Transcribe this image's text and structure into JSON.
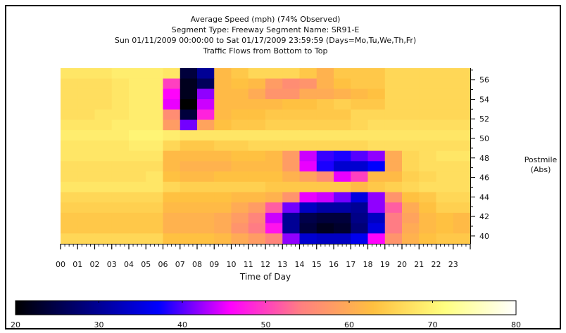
{
  "chart_data": {
    "type": "heatmap",
    "title_lines": [
      "Average Speed (mph) (74% Observed)",
      "Segment Type: Freeway Segment Name: SR91-E",
      "Sun 01/11/2009 00:00:00 to Sat 01/17/2009 23:59:59 (Days=Mo,Tu,We,Th,Fr)",
      "Traffic Flows from Bottom to Top"
    ],
    "xlabel": "Time of Day",
    "ylabel_lines": [
      "Postmile",
      "(Abs)"
    ],
    "x_ticks": [
      "00",
      "01",
      "02",
      "03",
      "04",
      "05",
      "06",
      "07",
      "08",
      "09",
      "10",
      "11",
      "12",
      "13",
      "14",
      "15",
      "16",
      "17",
      "18",
      "19",
      "20",
      "21",
      "22",
      "23"
    ],
    "y_ticks": [
      "40",
      "42",
      "44",
      "46",
      "48",
      "50",
      "52",
      "54",
      "56"
    ],
    "ylim": [
      39.2,
      57.2
    ],
    "colorbar": {
      "min": 20,
      "max": 80,
      "ticks": [
        "20",
        "30",
        "40",
        "50",
        "60",
        "70",
        "80"
      ],
      "stops": [
        "#000000",
        "#000080",
        "#0000ff",
        "#ff00ff",
        "#ff8080",
        "#ffc040",
        "#ffff80",
        "#ffffff"
      ]
    },
    "rows_top_to_bottom": [
      [
        68,
        68,
        68,
        69,
        69,
        69,
        68,
        24,
        30,
        62,
        64,
        66,
        66,
        66,
        64,
        61,
        64,
        64,
        64,
        66,
        66,
        66,
        66,
        66
      ],
      [
        67,
        67,
        67,
        68,
        69,
        69,
        50,
        22,
        26,
        62,
        63,
        62,
        58,
        56,
        57,
        61,
        63,
        64,
        64,
        66,
        66,
        66,
        66,
        66
      ],
      [
        67,
        67,
        67,
        68,
        69,
        69,
        46,
        22,
        42,
        62,
        62,
        60,
        57,
        57,
        60,
        60,
        61,
        62,
        63,
        66,
        66,
        66,
        66,
        66
      ],
      [
        67,
        67,
        67,
        68,
        69,
        69,
        45,
        20,
        44,
        62,
        62,
        62,
        62,
        63,
        63,
        64,
        65,
        64,
        64,
        66,
        66,
        66,
        66,
        66
      ],
      [
        67,
        67,
        68,
        68,
        69,
        69,
        56,
        24,
        48,
        62,
        63,
        63,
        64,
        64,
        64,
        64,
        64,
        66,
        66,
        66,
        66,
        66,
        66,
        66
      ],
      [
        68,
        68,
        68,
        69,
        69,
        69,
        58,
        41,
        59,
        63,
        64,
        64,
        65,
        65,
        65,
        65,
        65,
        66,
        67,
        67,
        67,
        67,
        67,
        67
      ],
      [
        69,
        69,
        69,
        69,
        70,
        70,
        69,
        68,
        68,
        68,
        68,
        68,
        68,
        68,
        68,
        68,
        68,
        68,
        68,
        68,
        68,
        68,
        68,
        68
      ],
      [
        68,
        68,
        68,
        68,
        69,
        69,
        66,
        64,
        64,
        65,
        65,
        66,
        66,
        66,
        66,
        66,
        66,
        66,
        67,
        67,
        67,
        67,
        67,
        67
      ],
      [
        68,
        68,
        68,
        68,
        68,
        68,
        62,
        62,
        62,
        62,
        63,
        63,
        62,
        58,
        44,
        39,
        38,
        40,
        42,
        60,
        66,
        67,
        68,
        68
      ],
      [
        67,
        67,
        67,
        67,
        67,
        67,
        62,
        61,
        61,
        61,
        62,
        62,
        62,
        58,
        45,
        38,
        34,
        34,
        37,
        60,
        66,
        67,
        67,
        67
      ],
      [
        67,
        67,
        67,
        67,
        67,
        68,
        63,
        62,
        62,
        63,
        63,
        63,
        63,
        61,
        59,
        56,
        45,
        50,
        62,
        62,
        65,
        66,
        67,
        67
      ],
      [
        68,
        68,
        68,
        68,
        68,
        68,
        66,
        65,
        65,
        65,
        65,
        65,
        64,
        64,
        64,
        64,
        64,
        62,
        64,
        65,
        66,
        67,
        67,
        67
      ],
      [
        66,
        66,
        66,
        66,
        66,
        66,
        63,
        63,
        63,
        63,
        62,
        62,
        61,
        57,
        45,
        44,
        41,
        35,
        42,
        57,
        63,
        64,
        66,
        66
      ],
      [
        65,
        65,
        65,
        65,
        65,
        65,
        62,
        62,
        62,
        62,
        60,
        58,
        52,
        41,
        33,
        31,
        31,
        30,
        42,
        52,
        60,
        63,
        65,
        65
      ],
      [
        64,
        64,
        64,
        64,
        64,
        64,
        61,
        61,
        61,
        60,
        58,
        55,
        44,
        30,
        25,
        24,
        24,
        29,
        33,
        54,
        59,
        62,
        63,
        62
      ],
      [
        64,
        64,
        64,
        64,
        64,
        64,
        61,
        61,
        61,
        60,
        57,
        54,
        47,
        30,
        24,
        22,
        23,
        28,
        35,
        54,
        60,
        62,
        63,
        62
      ],
      [
        66,
        66,
        66,
        66,
        66,
        66,
        63,
        63,
        63,
        62,
        60,
        58,
        55,
        42,
        34,
        33,
        33,
        36,
        46,
        57,
        61,
        63,
        64,
        64
      ]
    ]
  }
}
